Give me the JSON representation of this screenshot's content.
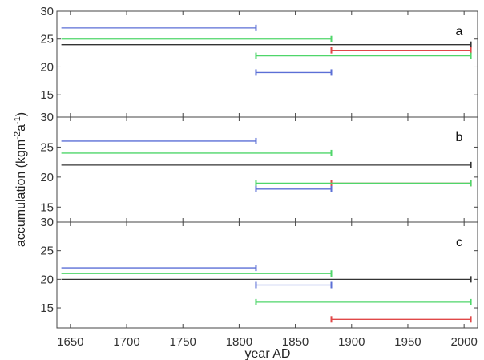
{
  "chart_data": {
    "type": "line",
    "xlabel": "year AD",
    "ylabel_main": "accumulation (kgm",
    "ylabel_sup1": "-2",
    "ylabel_mid": "a",
    "ylabel_sup2": "-1",
    "ylabel_end": ")",
    "xlim": [
      1638,
      2012
    ],
    "x_ticks": [
      1650,
      1700,
      1750,
      1800,
      1850,
      1900,
      1950,
      2000
    ],
    "colors": {
      "blue": "#5b6fd6",
      "green": "#4fd66a",
      "black": "#333333",
      "red": "#e04848"
    },
    "panels": [
      {
        "label": "a",
        "ylim": [
          11,
          30
        ],
        "y_ticks": [
          15,
          20,
          25,
          30
        ],
        "segments": [
          {
            "color": "blue",
            "x": [
              1642,
              1815
            ],
            "y": 27
          },
          {
            "color": "green",
            "x": [
              1642,
              1882
            ],
            "y": 25
          },
          {
            "color": "black",
            "x": [
              1642,
              2006
            ],
            "y": 24
          },
          {
            "color": "red",
            "x": [
              1882,
              2006
            ],
            "y": 23
          },
          {
            "color": "green",
            "x": [
              1815,
              2006
            ],
            "y": 22
          },
          {
            "color": "blue",
            "x": [
              1815,
              1882
            ],
            "y": 19
          }
        ]
      },
      {
        "label": "b",
        "ylim": [
          12.5,
          30
        ],
        "y_ticks": [
          15,
          20,
          25,
          30
        ],
        "segments": [
          {
            "color": "blue",
            "x": [
              1642,
              1815
            ],
            "y": 26
          },
          {
            "color": "green",
            "x": [
              1642,
              1882
            ],
            "y": 24
          },
          {
            "color": "black",
            "x": [
              1642,
              2006
            ],
            "y": 22
          },
          {
            "color": "red",
            "x": [
              1882,
              2006
            ],
            "y": 19
          },
          {
            "color": "green",
            "x": [
              1815,
              2006
            ],
            "y": 19
          },
          {
            "color": "blue",
            "x": [
              1815,
              1882
            ],
            "y": 18
          }
        ]
      },
      {
        "label": "c",
        "ylim": [
          11.5,
          30
        ],
        "y_ticks": [
          15,
          20,
          25,
          30
        ],
        "segments": [
          {
            "color": "blue",
            "x": [
              1642,
              1815
            ],
            "y": 22
          },
          {
            "color": "green",
            "x": [
              1642,
              1882
            ],
            "y": 21
          },
          {
            "color": "black",
            "x": [
              1642,
              2006
            ],
            "y": 20
          },
          {
            "color": "blue",
            "x": [
              1815,
              1882
            ],
            "y": 19
          },
          {
            "color": "green",
            "x": [
              1815,
              2006
            ],
            "y": 16
          },
          {
            "color": "red",
            "x": [
              1882,
              2006
            ],
            "y": 13
          }
        ]
      }
    ]
  }
}
